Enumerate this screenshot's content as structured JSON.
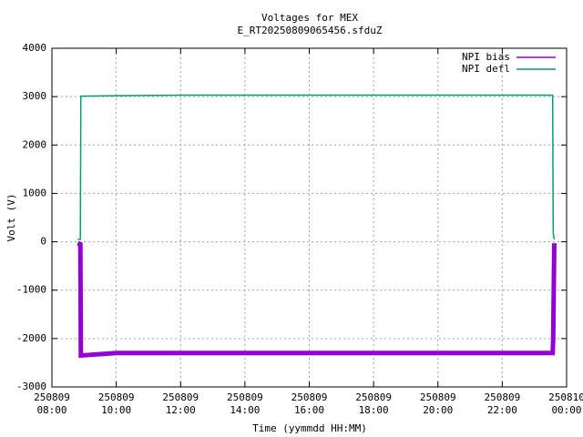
{
  "chart_data": {
    "type": "line",
    "title": "Voltages for MEX",
    "subtitle": "E_RT20250809065456.sfduZ",
    "x_label": "Time (yymmdd HH:MM)",
    "y_label": "Volt (V)",
    "x": [
      "250809 08:48",
      "250809 08:53",
      "250809 08:54",
      "250809 10:00",
      "250809 12:00",
      "250809 14:00",
      "250809 16:00",
      "250809 18:00",
      "250809 20:00",
      "250809 22:00",
      "250809 23:34",
      "250809 23:35",
      "250809 23:36",
      "250809 23:37"
    ],
    "series": [
      {
        "name": "NPI bias",
        "color": "#9400d3",
        "values": [
          -30,
          -50,
          -2350,
          -2300,
          -2300,
          -2300,
          -2300,
          -2300,
          -2300,
          -2300,
          -2300,
          -2000,
          -1000,
          -30
        ]
      },
      {
        "name": "NPI defl",
        "color": "#009e73",
        "values": [
          50,
          50,
          3010,
          3020,
          3030,
          3030,
          3030,
          3030,
          3030,
          3030,
          3030,
          200,
          100,
          50
        ]
      }
    ],
    "xlim": [
      "250809 08:00",
      "250810 00:00"
    ],
    "xticks": [
      "250809 08:00",
      "250809 10:00",
      "250809 12:00",
      "250809 14:00",
      "250809 16:00",
      "250809 18:00",
      "250809 20:00",
      "250809 22:00",
      "250810 00:00"
    ],
    "ylim": [
      -3000,
      4000
    ],
    "yticks": [
      -3000,
      -2000,
      -1000,
      0,
      1000,
      2000,
      3000,
      4000
    ],
    "grid": true,
    "legend": "top-right"
  }
}
